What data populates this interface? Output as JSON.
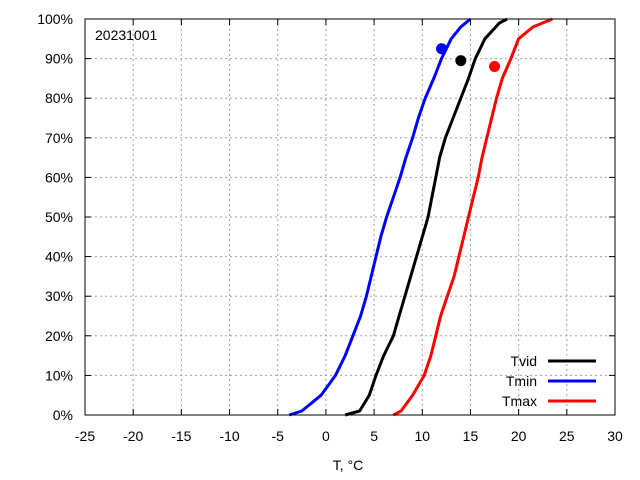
{
  "chart_data": {
    "type": "line",
    "annotation": "20231001",
    "xlabel": "T, °C",
    "ylabel": "",
    "xlim": [
      -25,
      30
    ],
    "ylim": [
      0,
      100
    ],
    "x_ticks": [
      -25,
      -20,
      -15,
      -10,
      -5,
      0,
      5,
      10,
      15,
      20,
      25,
      30
    ],
    "y_ticks": [
      0,
      10,
      20,
      30,
      40,
      50,
      60,
      70,
      80,
      90,
      100
    ],
    "x_tick_labels": [
      "-25",
      "-20",
      "-15",
      "-10",
      "-5",
      "0",
      "5",
      "10",
      "15",
      "20",
      "25",
      "30"
    ],
    "y_tick_labels": [
      "0%",
      "10%",
      "20%",
      "30%",
      "40%",
      "50%",
      "60%",
      "70%",
      "80%",
      "90%",
      "100%"
    ],
    "grid": true,
    "legend_position": "bottom-right",
    "series": [
      {
        "name": "Tvid",
        "color": "#000000",
        "x": [
          2.0,
          3.5,
          4.5,
          5.2,
          6.0,
          7.0,
          7.6,
          8.2,
          8.8,
          9.4,
          10.0,
          10.6,
          11.0,
          11.4,
          11.8,
          12.4,
          13.2,
          14.0,
          14.8,
          15.5,
          16.5,
          18.0,
          18.8
        ],
        "y": [
          0,
          1,
          5,
          10,
          15,
          20,
          25,
          30,
          35,
          40,
          45,
          50,
          55,
          60,
          65,
          70,
          75,
          80,
          85,
          90,
          95,
          99,
          100
        ],
        "marker": {
          "x": 14.0,
          "y": 89.5
        }
      },
      {
        "name": "Tmin",
        "color": "#0000ff",
        "x": [
          -3.8,
          -2.5,
          -0.5,
          1.0,
          2.0,
          2.8,
          3.6,
          4.2,
          4.7,
          5.2,
          5.7,
          6.3,
          7.0,
          7.7,
          8.3,
          9.0,
          9.6,
          10.3,
          11.2,
          12.0,
          13.0,
          14.0,
          15.0
        ],
        "y": [
          0,
          1,
          5,
          10,
          15,
          20,
          25,
          30,
          35,
          40,
          45,
          50,
          55,
          60,
          65,
          70,
          75,
          80,
          85,
          90,
          95,
          98,
          100
        ],
        "marker": {
          "x": 12.0,
          "y": 92.5
        }
      },
      {
        "name": "Tmax",
        "color": "#ff0000",
        "x": [
          7.0,
          7.8,
          9.0,
          10.2,
          10.9,
          11.4,
          11.9,
          12.6,
          13.3,
          13.8,
          14.3,
          14.8,
          15.3,
          15.8,
          16.2,
          16.7,
          17.2,
          17.7,
          18.3,
          19.2,
          20.0,
          21.5,
          23.5
        ],
        "y": [
          0,
          1,
          5,
          10,
          15,
          20,
          25,
          30,
          35,
          40,
          45,
          50,
          55,
          60,
          65,
          70,
          75,
          80,
          85,
          90,
          95,
          98,
          100
        ],
        "marker": {
          "x": 17.5,
          "y": 88.0
        }
      }
    ]
  }
}
